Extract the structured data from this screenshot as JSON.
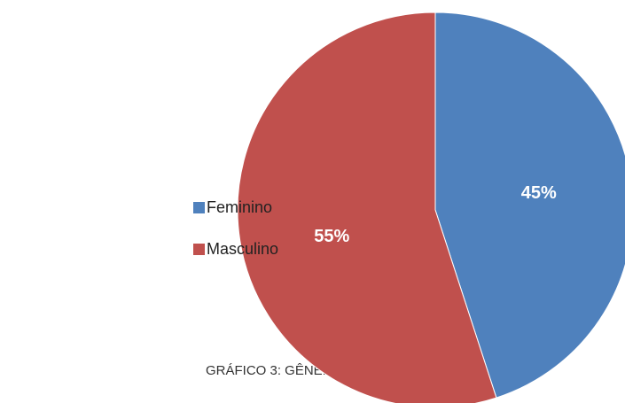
{
  "chart_data": {
    "type": "pie",
    "caption": "GRÁFICO 3: GÊNERO",
    "categories": [
      "Feminino",
      "Masculino"
    ],
    "values": [
      45,
      55
    ],
    "value_labels": [
      "45%",
      "55%"
    ],
    "colors": [
      "#4f81bd",
      "#c0504d"
    ],
    "legend": "left"
  }
}
